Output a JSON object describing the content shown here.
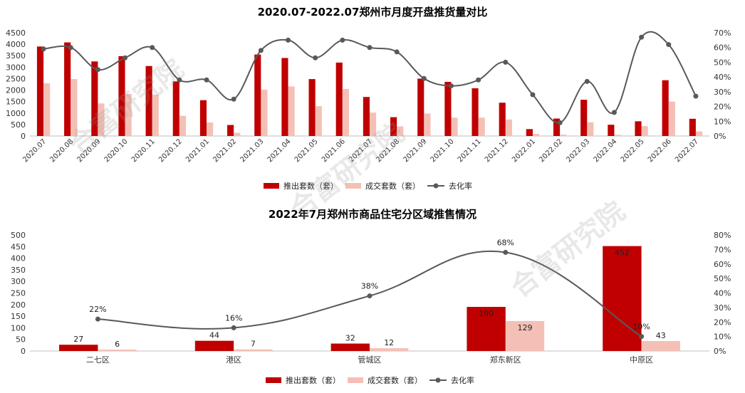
{
  "watermark": "合富研究院",
  "colors": {
    "supply": "#c00000",
    "deal": "#f4c0b6",
    "rate": "#595959",
    "axis": "#333333"
  },
  "chart_data": [
    {
      "type": "bar",
      "title": "2020.07-2022.07郑州市月度开盘推货量对比",
      "categories": [
        "2020.07",
        "2020.08",
        "2020.09",
        "2020.10",
        "2020.11",
        "2020.12",
        "2021.01",
        "2021.02",
        "2021.03",
        "2021.04",
        "2021.05",
        "2021.06",
        "2021.07",
        "2021.08",
        "2021.09",
        "2021.10",
        "2021.11",
        "2021.12",
        "2022.01",
        "2022.02",
        "2022.03",
        "2022.04",
        "2022.05",
        "2022.06",
        "2022.07"
      ],
      "series": [
        {
          "name": "推出套数（套）",
          "kind": "bar",
          "axis": "left",
          "values": [
            3900,
            4080,
            3250,
            3480,
            3050,
            2380,
            1560,
            480,
            3550,
            3400,
            2480,
            3200,
            1700,
            820,
            2500,
            2360,
            2080,
            1450,
            300,
            760,
            1580,
            490,
            640,
            2430,
            750
          ]
        },
        {
          "name": "成交套数（套）",
          "kind": "bar",
          "axis": "left",
          "values": [
            2300,
            2480,
            1420,
            1830,
            1800,
            880,
            590,
            140,
            2020,
            2160,
            1300,
            2050,
            1020,
            420,
            980,
            800,
            800,
            720,
            90,
            60,
            600,
            50,
            430,
            1500,
            200
          ]
        },
        {
          "name": "去化率",
          "kind": "line",
          "axis": "right",
          "values": [
            59,
            60,
            45,
            53,
            60,
            38,
            38,
            25,
            58,
            65,
            53,
            65,
            60,
            57,
            39,
            34,
            38,
            50,
            28,
            9,
            37,
            16,
            67,
            62,
            27
          ]
        }
      ],
      "yLeft": {
        "min": 0,
        "max": 4500,
        "step": 500
      },
      "yRight": {
        "min": 0,
        "max": 70,
        "step": 10
      },
      "legend": [
        "推出套数（套）",
        "成交套数（套）",
        "去化率"
      ],
      "legend_position": "bottom"
    },
    {
      "type": "bar",
      "title": "2022年7月郑州市商品住宅分区域推售情况",
      "categories": [
        "二七区",
        "港区",
        "管城区",
        "郑东新区",
        "中原区"
      ],
      "series": [
        {
          "name": "推出套数（套）",
          "kind": "bar",
          "axis": "left",
          "values": [
            27,
            44,
            32,
            190,
            452
          ]
        },
        {
          "name": "成交套数（套）",
          "kind": "bar",
          "axis": "left",
          "values": [
            6,
            7,
            12,
            129,
            43
          ]
        },
        {
          "name": "去化率",
          "kind": "line",
          "axis": "right",
          "values": [
            22,
            16,
            38,
            68,
            10
          ]
        }
      ],
      "yLeft": {
        "min": 0,
        "max": 500,
        "step": 50
      },
      "yRight": {
        "min": 0,
        "max": 80,
        "step": 10
      },
      "legend": [
        "推出套数（套）",
        "成交套数（套）",
        "去化率"
      ],
      "legend_position": "bottom"
    }
  ]
}
